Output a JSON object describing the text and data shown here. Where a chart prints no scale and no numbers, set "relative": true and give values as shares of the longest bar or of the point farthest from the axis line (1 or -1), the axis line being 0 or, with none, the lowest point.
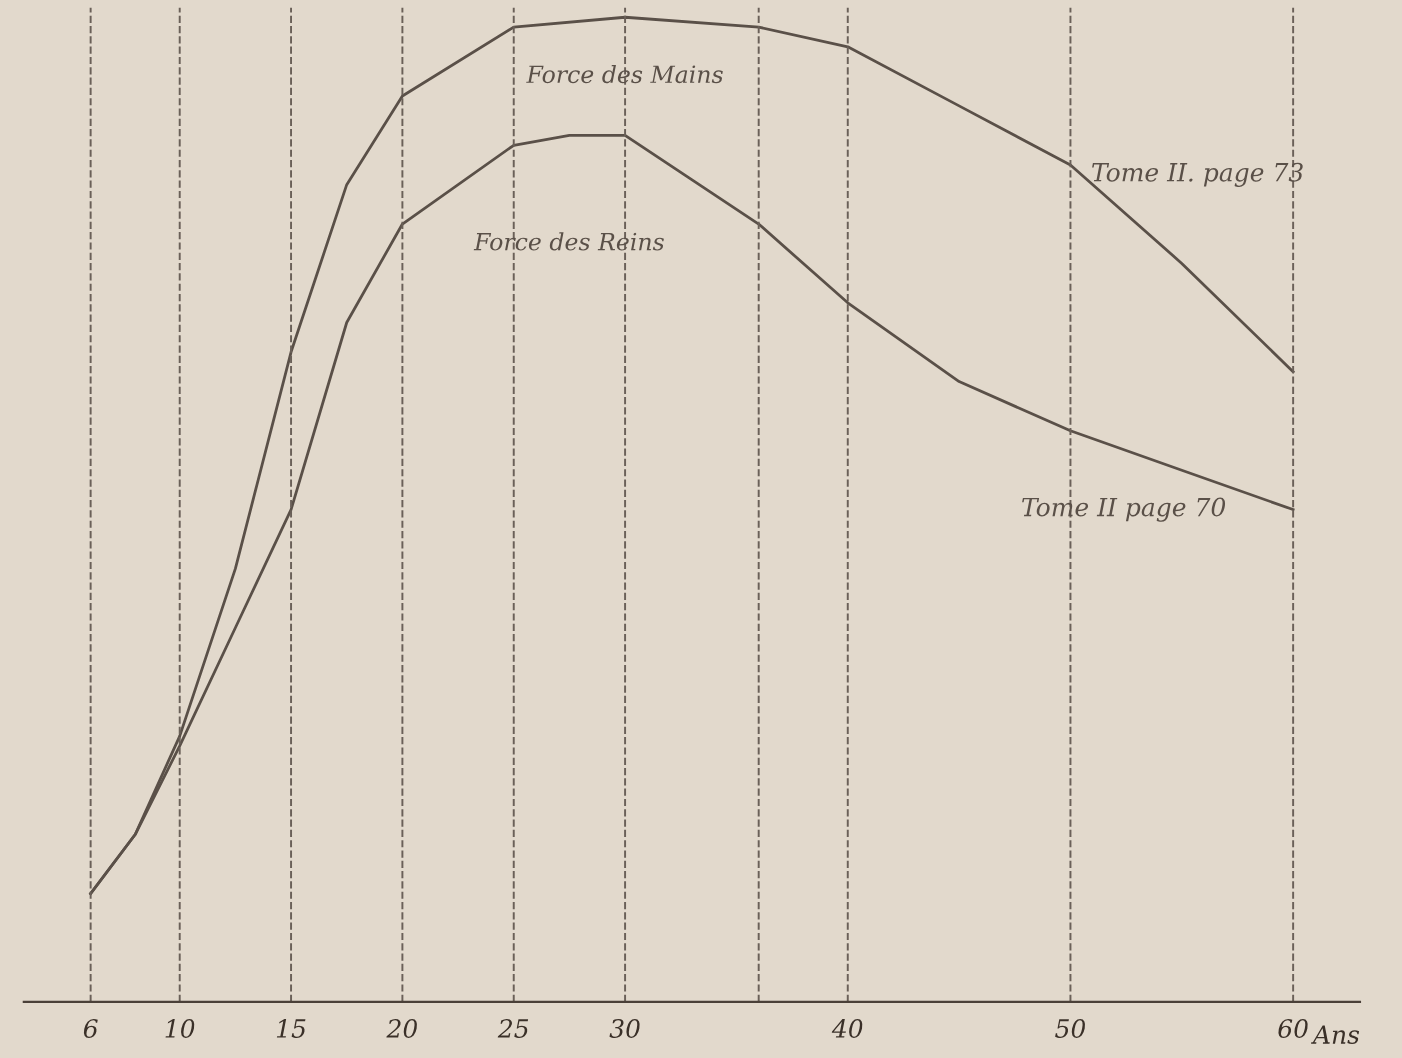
{
  "chart_data": {
    "type": "line",
    "relative": true,
    "xlabel": "Ans",
    "xlim": [
      3,
      63
    ],
    "xticks": [
      6,
      10,
      15,
      20,
      25,
      30,
      40,
      50,
      60
    ],
    "grid": "x",
    "series": [
      {
        "name": "Force des Mains",
        "color": "#5a5048",
        "x": [
          6,
          8,
          10,
          12.5,
          15,
          17.5,
          20,
          25,
          30,
          36,
          40,
          45,
          50,
          55,
          60
        ],
        "values": [
          0.11,
          0.17,
          0.27,
          0.44,
          0.66,
          0.83,
          0.92,
          0.99,
          1.0,
          0.99,
          0.97,
          0.91,
          0.85,
          0.75,
          0.64
        ]
      },
      {
        "name": "Force des Reins",
        "color": "#5a5048",
        "x": [
          6,
          8,
          10,
          12.5,
          15,
          17.5,
          20,
          25,
          27.5,
          30,
          36,
          40,
          45,
          50,
          55,
          60
        ],
        "values": [
          0.11,
          0.17,
          0.26,
          0.38,
          0.5,
          0.69,
          0.79,
          0.87,
          0.88,
          0.88,
          0.79,
          0.71,
          0.63,
          0.58,
          0.54,
          0.5
        ]
      }
    ],
    "ref_lines": [
      {
        "axis": "x",
        "value": 36,
        "line_style": "dashed"
      }
    ],
    "annotations": [
      "Tome II. page 73",
      "Tome II page 70"
    ],
    "legend": false,
    "marker": "none",
    "line_style": "solid"
  }
}
